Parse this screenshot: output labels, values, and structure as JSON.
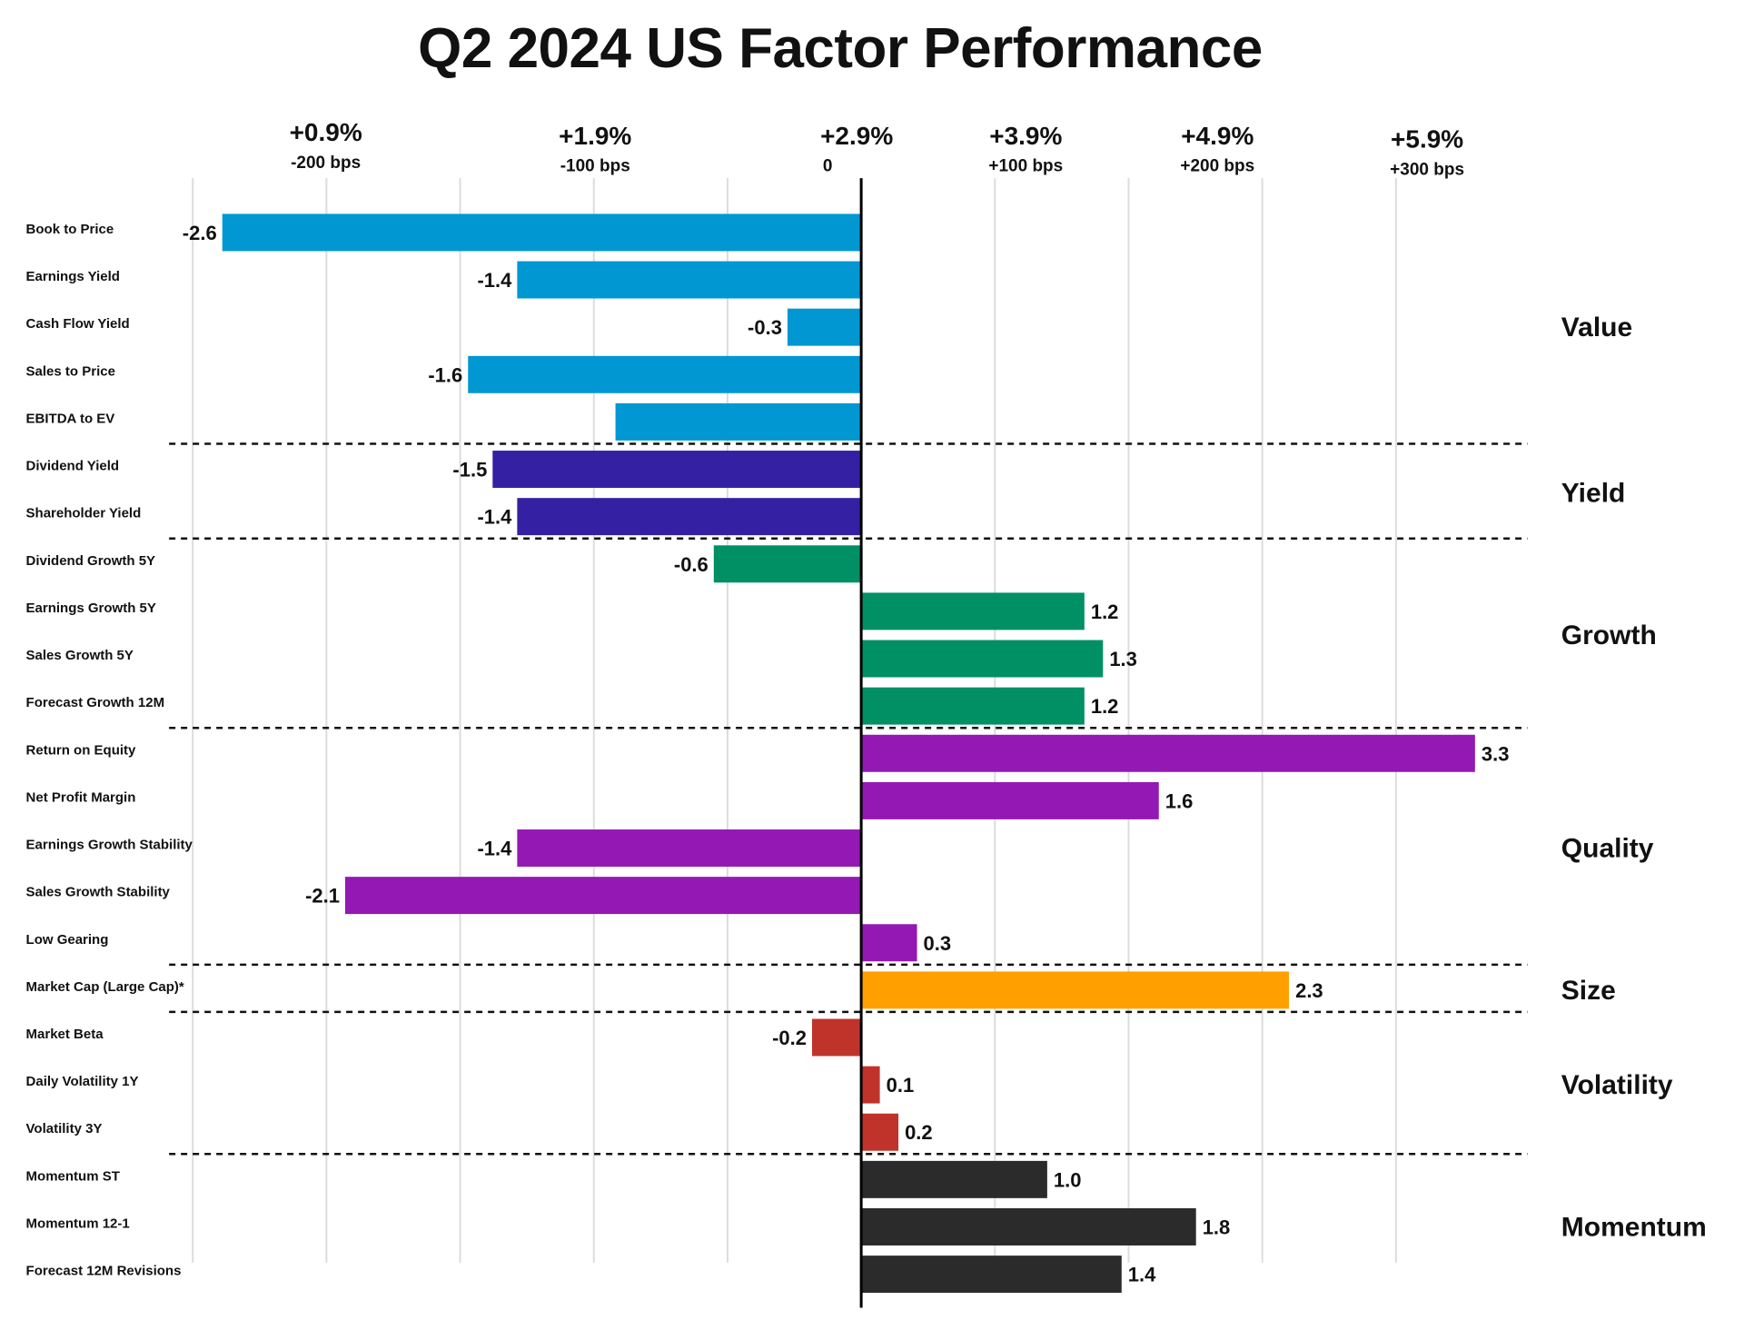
{
  "chart_data": {
    "type": "bar",
    "orientation": "horizontal",
    "title": "Q2 2024 US Factor Performance",
    "xlabel": "",
    "ylabel": "",
    "grid": true,
    "xlim_bps": [
      -250,
      350
    ],
    "baseline": "+2.9%",
    "x_ticks": [
      {
        "pct": "+0.9%",
        "bps": "-200 bps",
        "value": -200
      },
      {
        "pct": "+1.9%",
        "bps": "-100 bps",
        "value": -100
      },
      {
        "pct": "+2.9%",
        "bps": "0",
        "value": 0
      },
      {
        "pct": "+3.9%",
        "bps": "+100 bps",
        "value": 100
      },
      {
        "pct": "+4.9%",
        "bps": "+200 bps",
        "value": 200
      },
      {
        "pct": "+5.9%",
        "bps": "+300 bps",
        "value": 300
      }
    ],
    "groups": [
      {
        "name": "Value",
        "color": "#0097D3",
        "items": [
          {
            "label": "Book to Price",
            "value": -2.6,
            "display": "-2.6"
          },
          {
            "label": "Earnings Yield",
            "value": -1.4,
            "display": "-1.4"
          },
          {
            "label": "Cash Flow Yield",
            "value": -0.3,
            "display": "-0.3"
          },
          {
            "label": "Sales to Price",
            "value": -1.6,
            "display": "-1.6"
          },
          {
            "label": "EBITDA to EV",
            "value": -1.0,
            "display": ""
          }
        ]
      },
      {
        "name": "Yield",
        "color": "#3420A3",
        "items": [
          {
            "label": "Dividend Yield",
            "value": -1.5,
            "display": "-1.5"
          },
          {
            "label": "Shareholder Yield",
            "value": -1.4,
            "display": "-1.4"
          }
        ]
      },
      {
        "name": "Growth",
        "color": "#009064",
        "items": [
          {
            "label": "Dividend Growth 5Y",
            "value": -0.6,
            "display": "-0.6"
          },
          {
            "label": "Earnings Growth 5Y",
            "value": 1.2,
            "display": "1.2"
          },
          {
            "label": "Sales Growth 5Y",
            "value": 1.3,
            "display": "1.3"
          },
          {
            "label": "Forecast Growth 12M",
            "value": 1.2,
            "display": "1.2"
          }
        ]
      },
      {
        "name": "Quality",
        "color": "#9418B4",
        "items": [
          {
            "label": "Return on Equity",
            "value": 3.3,
            "display": "3.3"
          },
          {
            "label": "Net Profit Margin",
            "value": 1.6,
            "display": "1.6"
          },
          {
            "label": "Earnings Growth Stability",
            "value": -1.4,
            "display": "-1.4"
          },
          {
            "label": "Sales Growth Stability",
            "value": -2.1,
            "display": "-2.1"
          },
          {
            "label": "Low Gearing",
            "value": 0.3,
            "display": "0.3"
          }
        ]
      },
      {
        "name": "Size",
        "color": "#FFA000",
        "items": [
          {
            "label": "Market Cap (Large Cap)*",
            "value": 2.3,
            "display": "2.3"
          }
        ]
      },
      {
        "name": "Volatility",
        "color": "#C0332A",
        "items": [
          {
            "label": "Market Beta",
            "value": -0.2,
            "display": "-0.2"
          },
          {
            "label": "Daily Volatility 1Y",
            "value": 0.1,
            "display": "0.1"
          },
          {
            "label": "Volatility 3Y",
            "value": 0.2,
            "display": "0.2"
          }
        ]
      },
      {
        "name": "Momentum",
        "color": "#2B2B2B",
        "items": [
          {
            "label": "Momentum ST",
            "value": 1.0,
            "display": "1.0"
          },
          {
            "label": "Momentum 12-1",
            "value": 1.8,
            "display": "1.8"
          },
          {
            "label": "Forecast 12M Revisions",
            "value": 1.4,
            "display": "1.4"
          }
        ]
      }
    ]
  }
}
